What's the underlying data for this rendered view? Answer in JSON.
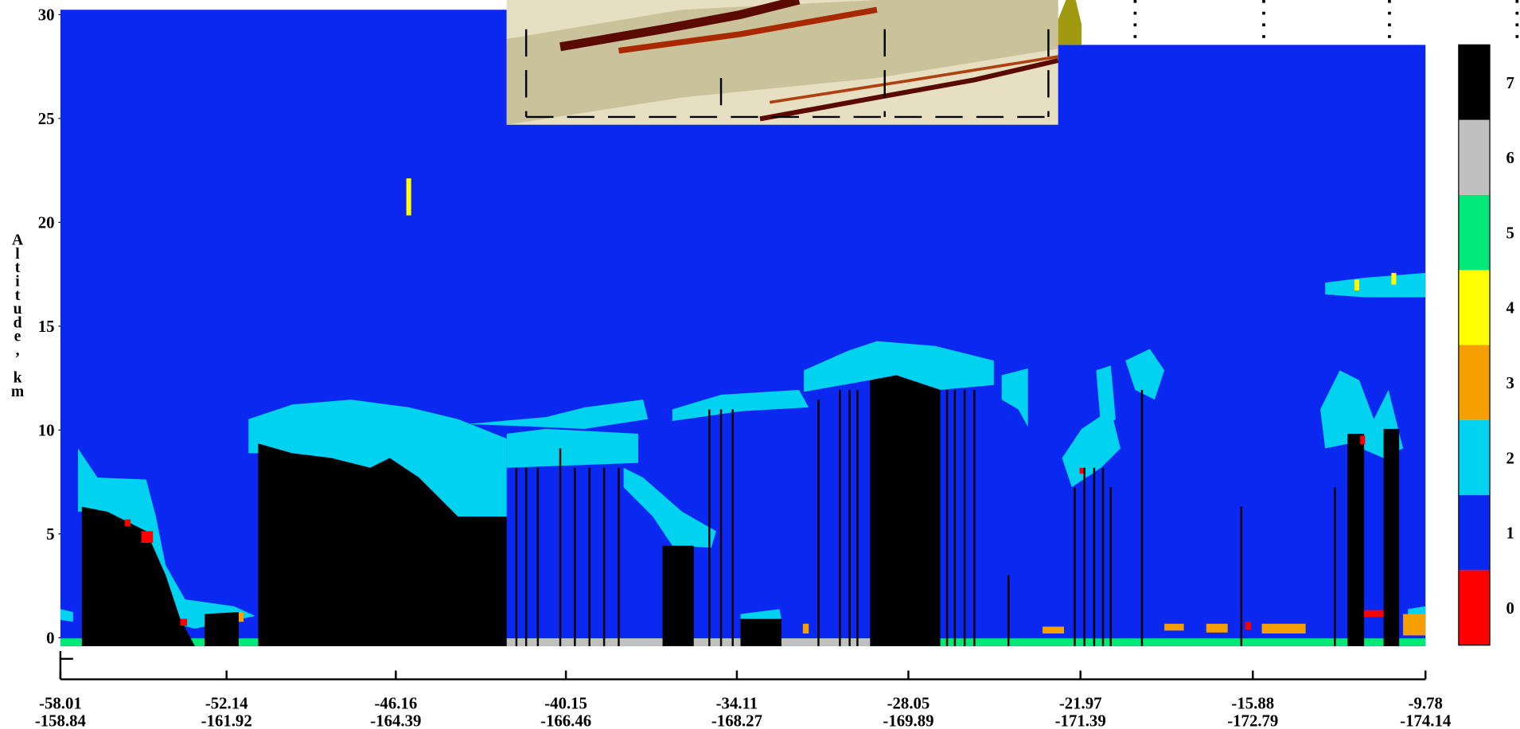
{
  "chart_data": {
    "type": "curtain",
    "ylabel": "Altitude, km",
    "ylim": [
      -2,
      30
    ],
    "yticks": [
      0,
      5,
      10,
      15,
      20,
      25,
      30
    ],
    "xlim": [
      -58.01,
      -9.78
    ],
    "xticks": [
      -58.01,
      -52.14,
      -46.16,
      -40.15,
      -34.11,
      -28.05,
      -21.97,
      -15.88,
      -9.78
    ],
    "xtick_second_labels": [
      "-158.84",
      "-161.92",
      "-164.39",
      "-166.46",
      "-168.27",
      "-169.89",
      "-171.39",
      "-172.79",
      "-174.14"
    ],
    "colorbar": {
      "categories": [
        0,
        1,
        2,
        3,
        4,
        5,
        6,
        7
      ],
      "colors": [
        "#ff0000",
        "#0a28f0",
        "#00d2f0",
        "#f5a000",
        "#ffff00",
        "#00e87a",
        "#c0c0c0",
        "#000000"
      ]
    }
  }
}
